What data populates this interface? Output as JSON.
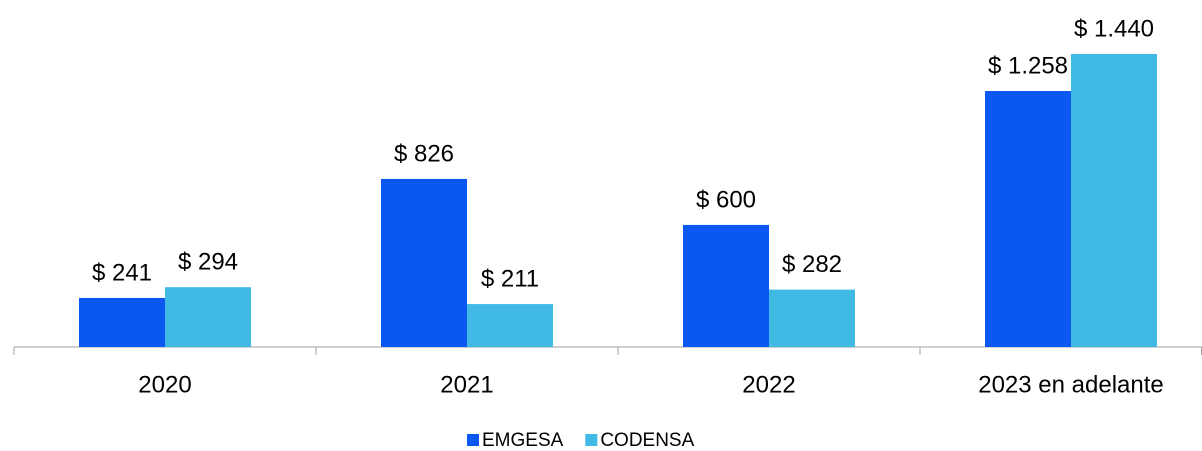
{
  "chart_data": {
    "type": "bar",
    "categories": [
      "2020",
      "2021",
      "2022",
      "2023 en adelante"
    ],
    "series": [
      {
        "name": "EMGESA",
        "color": "#0b57f2",
        "values": [
          241,
          826,
          600,
          1258
        ],
        "value_labels": [
          "$ 241",
          "$ 826",
          "$ 600",
          "$ 1.258"
        ]
      },
      {
        "name": "CODENSA",
        "color": "#41b9e5",
        "values": [
          294,
          211,
          282,
          1440
        ],
        "value_labels": [
          "$ 294",
          "$ 211",
          "$ 282",
          "$ 1.440"
        ]
      }
    ],
    "legend": "bottom"
  }
}
